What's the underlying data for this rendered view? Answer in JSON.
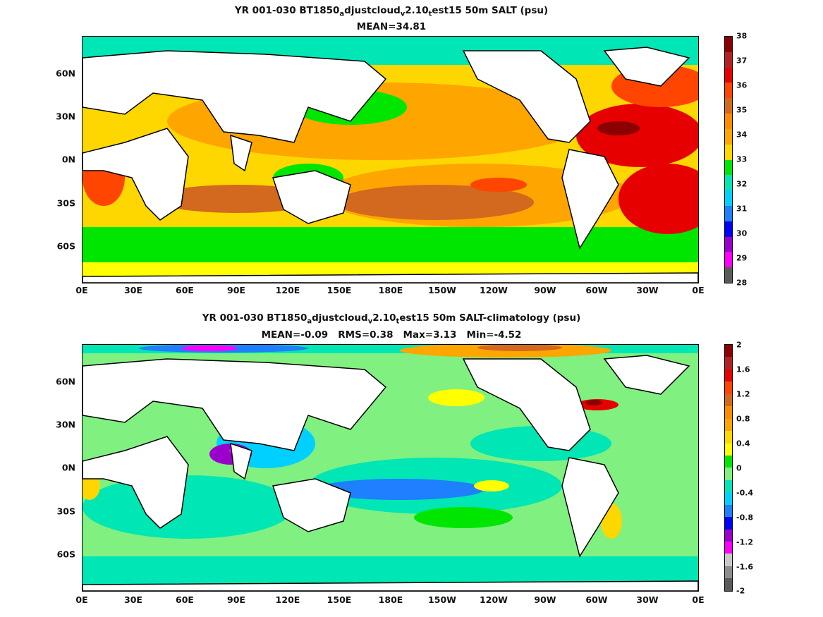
{
  "panels": [
    {
      "title_parts": [
        "YR 001-030 BT1850",
        "a",
        "djustcloud",
        "v",
        "2.10",
        "t",
        "est15 50m SALT (psu)"
      ],
      "subtitle": "MEAN=34.81",
      "x_ticks": [
        "0E",
        "30E",
        "60E",
        "90E",
        "120E",
        "150E",
        "180E",
        "150W",
        "120W",
        "90W",
        "60W",
        "30W",
        "0E"
      ],
      "y_ticks": [
        "60N",
        "30N",
        "0N",
        "30S",
        "60S"
      ],
      "colorbar_labels": [
        "38",
        "37",
        "36",
        "35",
        "34",
        "33",
        "32",
        "31",
        "30",
        "29",
        "28"
      ],
      "colorbar_colors": [
        "#8b0000",
        "#e60000",
        "#ff4500",
        "#d2691e",
        "#ffa500",
        "#ffd700",
        "#ffff00",
        "#00e600",
        "#00e6b4",
        "#00d0ff",
        "#1e7fff",
        "#0000ff",
        "#9900cc",
        "#ff00ff",
        "#c8c8c8",
        "#5a5a5a"
      ]
    },
    {
      "title_parts": [
        "YR 001-030 BT1850",
        "a",
        "djustcloud",
        "v",
        "2.10",
        "t",
        "est15 50m SALT-climatology (psu)"
      ],
      "subtitle": "MEAN=-0.09   RMS=0.38   Max=3.13   Min=-4.52",
      "x_ticks": [
        "0E",
        "30E",
        "60E",
        "90E",
        "120E",
        "150E",
        "180E",
        "150W",
        "120W",
        "90W",
        "60W",
        "30W",
        "0E"
      ],
      "y_ticks": [
        "60N",
        "30N",
        "0N",
        "30S",
        "60S"
      ],
      "colorbar_labels": [
        "2",
        "1.6",
        "1.2",
        "0.8",
        "0.4",
        "0",
        "-0.4",
        "-0.8",
        "-1.2",
        "-1.6",
        "-2"
      ],
      "colorbar_colors": [
        "#8b0000",
        "#e60000",
        "#ff4500",
        "#d2691e",
        "#ffa500",
        "#ffd700",
        "#ffff00",
        "#00e600",
        "#80f080",
        "#00e6b4",
        "#00d0ff",
        "#1e7fff",
        "#0000ff",
        "#9900cc",
        "#ff00ff",
        "#c8c8c8",
        "#5a5a5a"
      ]
    }
  ]
}
